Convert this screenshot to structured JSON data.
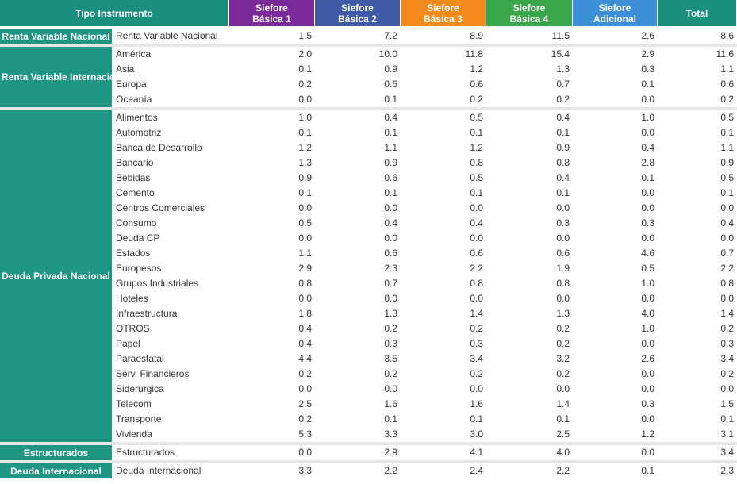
{
  "header": {
    "tipo": "Tipo Instrumento",
    "sb1": [
      "Siefore",
      "Básica 1"
    ],
    "sb2": [
      "Siefore",
      "Básica 2"
    ],
    "sb3": [
      "Siefore",
      "Básica 3"
    ],
    "sb4": [
      "Siefore",
      "Básica 4"
    ],
    "sad": [
      "Siefore",
      "Adicional"
    ],
    "total": "Total"
  },
  "colors": {
    "sb1": "#7b2a9a",
    "sb2": "#3f5aa6",
    "sb3": "#f28a1c",
    "sb4": "#3aa64a",
    "sad": "#3d8fd8",
    "teal": "#1f9683"
  },
  "groups": [
    {
      "name": "Renta Variable Nacional",
      "rows": [
        [
          "Renta Variable Nacional",
          "1.5",
          "7.2",
          "8.9",
          "11.5",
          "2.6",
          "8.6"
        ]
      ]
    },
    {
      "name": "Renta Variable Internacional",
      "rows": [
        [
          "América",
          "2.0",
          "10.0",
          "11.8",
          "15.4",
          "2.9",
          "11.6"
        ],
        [
          "Asia",
          "0.1",
          "0.9",
          "1.2",
          "1.3",
          "0.3",
          "1.1"
        ],
        [
          "Europa",
          "0.2",
          "0.6",
          "0.6",
          "0.7",
          "0.1",
          "0.6"
        ],
        [
          "Oceanía",
          "0.0",
          "0.1",
          "0.2",
          "0.2",
          "0.0",
          "0.2"
        ]
      ]
    },
    {
      "name": "Deuda Privada Nacional",
      "rows": [
        [
          "Alimentos",
          "1.0",
          "0.4",
          "0.5",
          "0.4",
          "1.0",
          "0.5"
        ],
        [
          "Automotriz",
          "0.1",
          "0.1",
          "0.1",
          "0.1",
          "0.0",
          "0.1"
        ],
        [
          "Banca de Desarrollo",
          "1.2",
          "1.1",
          "1.2",
          "0.9",
          "0.4",
          "1.1"
        ],
        [
          "Bancario",
          "1.3",
          "0.9",
          "0.8",
          "0.8",
          "2.8",
          "0.9"
        ],
        [
          "Bebidas",
          "0.9",
          "0.6",
          "0.5",
          "0.4",
          "0.1",
          "0.5"
        ],
        [
          "Cemento",
          "0.1",
          "0.1",
          "0.1",
          "0.1",
          "0.0",
          "0.1"
        ],
        [
          "Centros Comerciales",
          "0.0",
          "0.0",
          "0.0",
          "0.0",
          "0.0",
          "0.0"
        ],
        [
          "Consumo",
          "0.5",
          "0.4",
          "0.4",
          "0.3",
          "0.3",
          "0.4"
        ],
        [
          "Deuda CP",
          "0.0",
          "0.0",
          "0.0",
          "0.0",
          "0.0",
          "0.0"
        ],
        [
          "Estados",
          "1.1",
          "0.6",
          "0.6",
          "0.6",
          "4.6",
          "0.7"
        ],
        [
          "Europesos",
          "2.9",
          "2.3",
          "2.2",
          "1.9",
          "0.5",
          "2.2"
        ],
        [
          "Grupos Industriales",
          "0.8",
          "0.7",
          "0.8",
          "0.8",
          "1.0",
          "0.8"
        ],
        [
          "Hoteles",
          "0.0",
          "0.0",
          "0.0",
          "0.0",
          "0.0",
          "0.0"
        ],
        [
          "Infraestructura",
          "1.8",
          "1.3",
          "1.4",
          "1.3",
          "4.0",
          "1.4"
        ],
        [
          "OTROS",
          "0.4",
          "0.2",
          "0.2",
          "0.2",
          "1.0",
          "0.2"
        ],
        [
          "Papel",
          "0.4",
          "0.3",
          "0.3",
          "0.2",
          "0.0",
          "0.3"
        ],
        [
          "Paraestatal",
          "4.4",
          "3.5",
          "3.4",
          "3.2",
          "2.6",
          "3.4"
        ],
        [
          "Serv. Financieros",
          "0.2",
          "0.2",
          "0.2",
          "0.2",
          "0.0",
          "0.2"
        ],
        [
          "Siderurgica",
          "0.0",
          "0.0",
          "0.0",
          "0.0",
          "0.0",
          "0.0"
        ],
        [
          "Telecom",
          "2.5",
          "1.6",
          "1.6",
          "1.4",
          "0.3",
          "1.5"
        ],
        [
          "Transporte",
          "0.2",
          "0.1",
          "0.1",
          "0.1",
          "0.0",
          "0.1"
        ],
        [
          "Vivienda",
          "5.3",
          "3.3",
          "3.0",
          "2.5",
          "1.2",
          "3.1"
        ]
      ]
    },
    {
      "name": "Estructurados",
      "rows": [
        [
          "Estructurados",
          "0.0",
          "2.9",
          "4.1",
          "4.0",
          "0.0",
          "3.4"
        ]
      ]
    },
    {
      "name": "Deuda Internacional",
      "rows": [
        [
          "Deuda Internacional",
          "3.3",
          "2.2",
          "2.4",
          "2.2",
          "0.1",
          "2.3"
        ]
      ]
    }
  ]
}
